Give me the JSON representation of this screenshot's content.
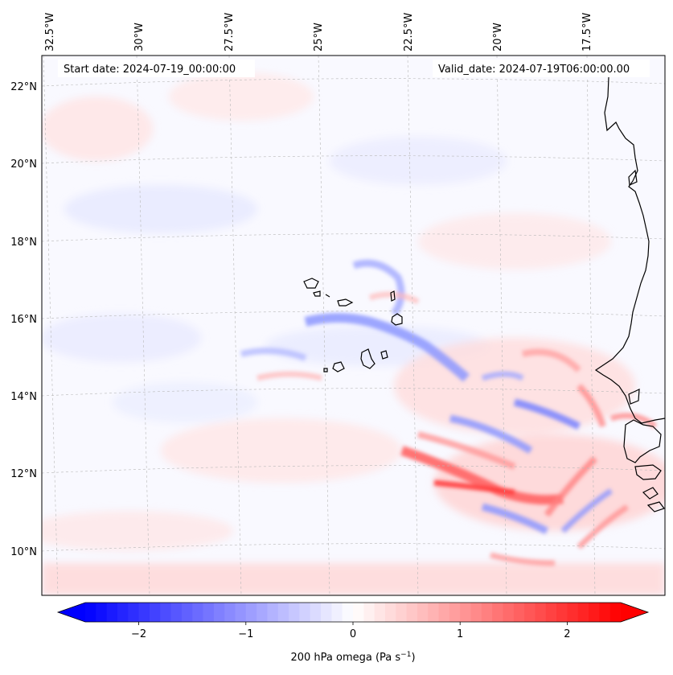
{
  "map": {
    "start_label": "Start date: 2024-07-19_00:00:00",
    "valid_label": "Valid_date: 2024-07-19T06:00:00.00",
    "lon_ticks": [
      "32.5°W",
      "30°W",
      "27.5°W",
      "25°W",
      "22.5°W",
      "20°W",
      "17.5°W"
    ],
    "lat_ticks": [
      "22°N",
      "20°N",
      "18°N",
      "16°N",
      "14°N",
      "12°N",
      "10°N"
    ],
    "gridlines": true,
    "coastline_color": "#000000"
  },
  "colorbar": {
    "label_main": "200 hPa omega (Pa s",
    "label_sup": "−1",
    "label_end": ")",
    "ticks": [
      "−2",
      "−1",
      "0",
      "1",
      "2"
    ],
    "tick_values": [
      -2,
      -1,
      0,
      1,
      2
    ],
    "range": [
      -2.5,
      2.5
    ],
    "colormap": "bwr",
    "low_color": "#0000ff",
    "mid_color": "#ffffff",
    "high_color": "#ff0000",
    "extend": "both"
  }
}
